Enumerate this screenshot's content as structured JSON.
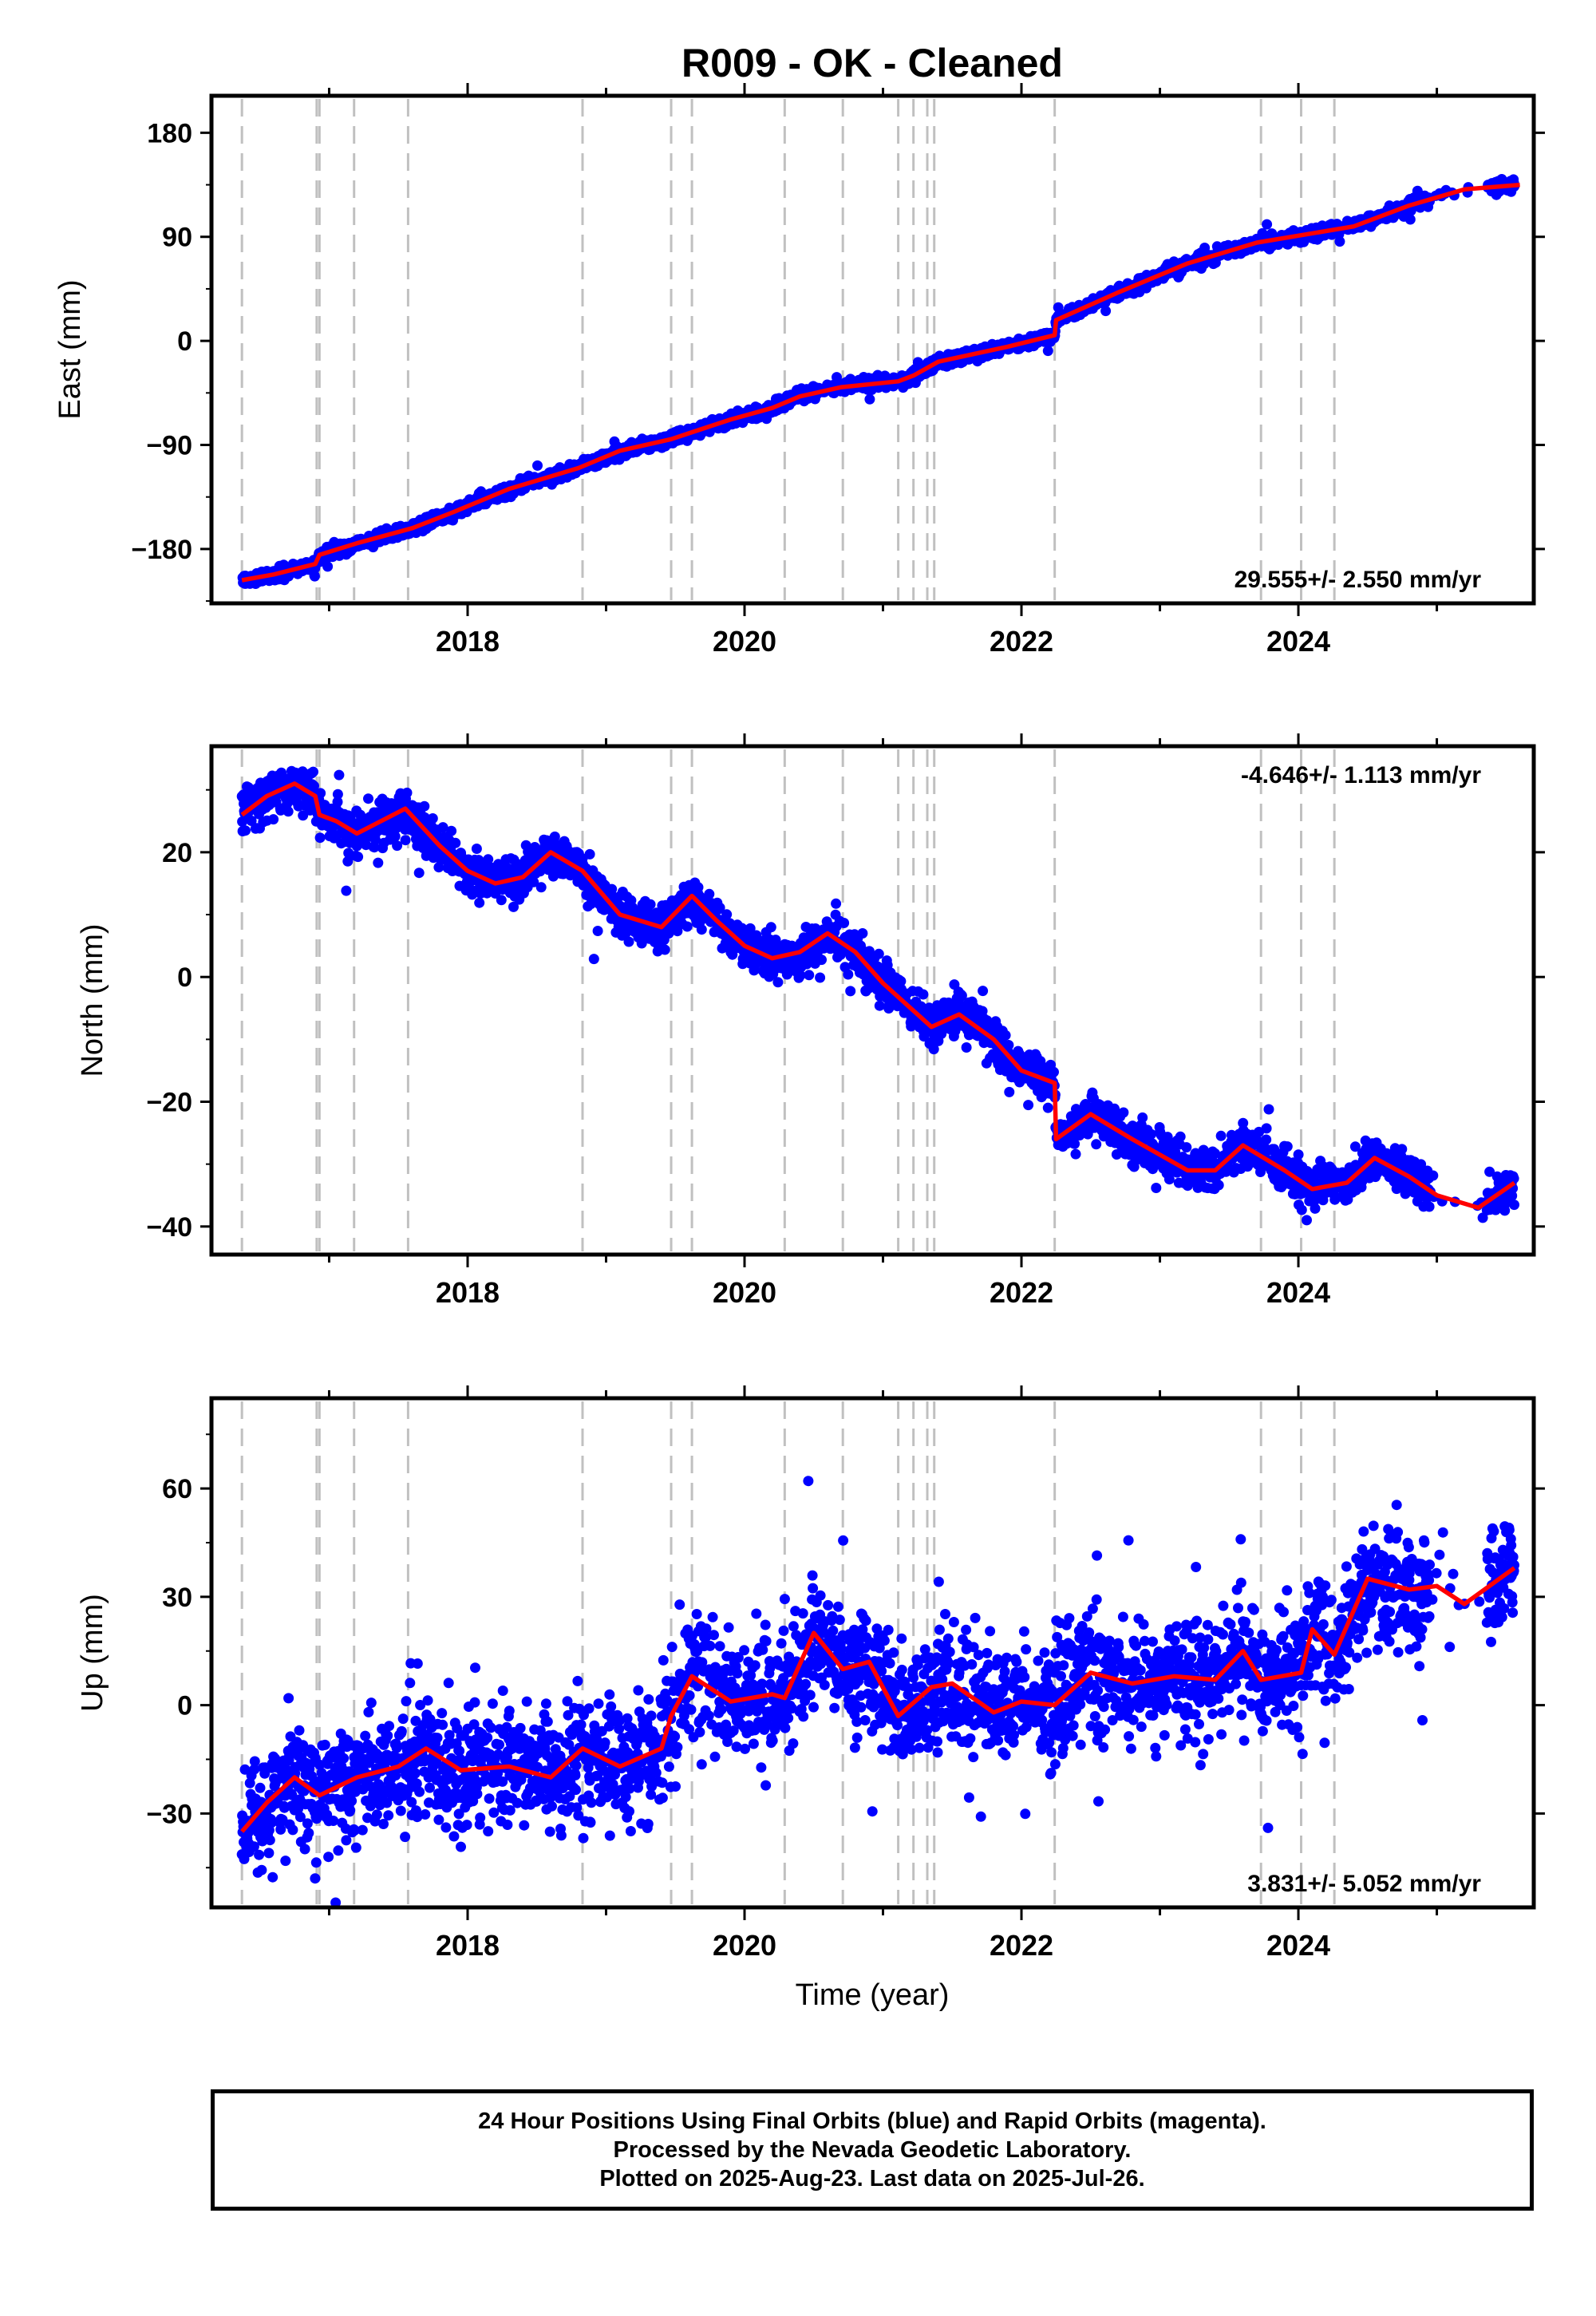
{
  "title": "R009  - OK - Cleaned",
  "xlabel": "Time (year)",
  "x_ticks": [
    2018,
    2020,
    2022,
    2024
  ],
  "x_range": [
    2016.15,
    2025.7
  ],
  "colors": {
    "points": "#0000ff",
    "fit": "#ff0000",
    "breaks": "#c0c0c0",
    "frame": "#000000"
  },
  "break_years": [
    2016.37,
    2016.91,
    2016.93,
    2017.18,
    2017.57,
    2018.83,
    2019.47,
    2019.62,
    2020.29,
    2020.71,
    2021.11,
    2021.22,
    2021.32,
    2021.37,
    2022.24,
    2023.73,
    2024.02,
    2024.26
  ],
  "chart_data": [
    {
      "type": "scatter",
      "ylabel": "East (mm)",
      "ylim": [
        -227,
        212
      ],
      "y_ticks": [
        -180,
        -90,
        0,
        90,
        180
      ],
      "rate": "29.555+/- 2.550 mm/yr",
      "rate_position": "bottom-right",
      "noise": 2.5,
      "fit": [
        [
          2016.37,
          -207
        ],
        [
          2016.6,
          -202
        ],
        [
          2016.9,
          -193
        ],
        [
          2016.93,
          -185
        ],
        [
          2017.2,
          -175
        ],
        [
          2017.6,
          -162
        ],
        [
          2017.9,
          -148
        ],
        [
          2018.3,
          -128
        ],
        [
          2018.8,
          -110
        ],
        [
          2019.1,
          -95
        ],
        [
          2019.47,
          -85
        ],
        [
          2019.62,
          -79
        ],
        [
          2019.9,
          -68
        ],
        [
          2020.2,
          -58
        ],
        [
          2020.4,
          -48
        ],
        [
          2020.7,
          -40
        ],
        [
          2021.11,
          -35
        ],
        [
          2021.22,
          -30
        ],
        [
          2021.4,
          -18
        ],
        [
          2021.9,
          -5
        ],
        [
          2022.24,
          5
        ],
        [
          2022.25,
          18
        ],
        [
          2022.7,
          42
        ],
        [
          2023.2,
          67
        ],
        [
          2023.7,
          85
        ],
        [
          2024.0,
          91
        ],
        [
          2024.4,
          99
        ],
        [
          2024.8,
          117
        ],
        [
          2025.2,
          131
        ],
        [
          2025.6,
          135
        ]
      ],
      "points_range": [
        2016.37,
        2025.56
      ],
      "gap": [
        2024.95,
        2025.36
      ]
    },
    {
      "type": "scatter",
      "ylabel": "North (mm)",
      "ylim": [
        -44.5,
        37
      ],
      "y_ticks": [
        -40,
        -20,
        0,
        20
      ],
      "rate": "-4.646+/- 1.113 mm/yr",
      "rate_position": "top-right",
      "noise": 1.6,
      "fit": [
        [
          2016.37,
          26
        ],
        [
          2016.55,
          29
        ],
        [
          2016.75,
          31
        ],
        [
          2016.9,
          29
        ],
        [
          2016.93,
          26
        ],
        [
          2017.05,
          25
        ],
        [
          2017.2,
          23
        ],
        [
          2017.55,
          27
        ],
        [
          2017.8,
          21
        ],
        [
          2018.0,
          17
        ],
        [
          2018.2,
          15
        ],
        [
          2018.4,
          16
        ],
        [
          2018.6,
          20
        ],
        [
          2018.83,
          17
        ],
        [
          2019.1,
          10
        ],
        [
          2019.4,
          8
        ],
        [
          2019.62,
          13
        ],
        [
          2019.8,
          9
        ],
        [
          2020.0,
          5
        ],
        [
          2020.2,
          3
        ],
        [
          2020.4,
          4
        ],
        [
          2020.6,
          7
        ],
        [
          2020.8,
          4
        ],
        [
          2021.0,
          -1
        ],
        [
          2021.2,
          -5
        ],
        [
          2021.35,
          -8
        ],
        [
          2021.55,
          -6
        ],
        [
          2021.8,
          -10
        ],
        [
          2022.0,
          -15
        ],
        [
          2022.24,
          -17
        ],
        [
          2022.25,
          -26
        ],
        [
          2022.5,
          -22
        ],
        [
          2022.8,
          -26
        ],
        [
          2023.2,
          -31
        ],
        [
          2023.4,
          -31
        ],
        [
          2023.6,
          -27
        ],
        [
          2023.9,
          -31
        ],
        [
          2024.1,
          -34
        ],
        [
          2024.35,
          -33
        ],
        [
          2024.55,
          -29
        ],
        [
          2024.8,
          -32
        ],
        [
          2025.0,
          -35
        ],
        [
          2025.3,
          -37
        ],
        [
          2025.56,
          -33
        ]
      ],
      "points_range": [
        2016.37,
        2025.56
      ],
      "gap": [
        2024.95,
        2025.36
      ]
    },
    {
      "type": "scatter",
      "ylabel": "Up (mm)",
      "ylim": [
        -56,
        85
      ],
      "y_ticks": [
        -30,
        0,
        30,
        60
      ],
      "rate": "3.831+/- 5.052 mm/yr",
      "rate_position": "bottom-right",
      "noise": 8,
      "fit": [
        [
          2016.37,
          -35
        ],
        [
          2016.55,
          -27
        ],
        [
          2016.75,
          -20
        ],
        [
          2016.93,
          -25
        ],
        [
          2017.2,
          -20
        ],
        [
          2017.5,
          -17
        ],
        [
          2017.7,
          -12
        ],
        [
          2017.95,
          -18
        ],
        [
          2018.3,
          -17
        ],
        [
          2018.6,
          -20
        ],
        [
          2018.83,
          -12
        ],
        [
          2019.1,
          -17
        ],
        [
          2019.4,
          -12
        ],
        [
          2019.47,
          -3
        ],
        [
          2019.62,
          8
        ],
        [
          2019.9,
          1
        ],
        [
          2020.2,
          3
        ],
        [
          2020.29,
          2
        ],
        [
          2020.5,
          20
        ],
        [
          2020.71,
          10
        ],
        [
          2020.9,
          12
        ],
        [
          2021.11,
          -3
        ],
        [
          2021.35,
          5
        ],
        [
          2021.5,
          6
        ],
        [
          2021.8,
          -2
        ],
        [
          2022.0,
          1
        ],
        [
          2022.24,
          0
        ],
        [
          2022.5,
          9
        ],
        [
          2022.8,
          6
        ],
        [
          2023.1,
          8
        ],
        [
          2023.4,
          7
        ],
        [
          2023.6,
          15
        ],
        [
          2023.73,
          7
        ],
        [
          2024.02,
          9
        ],
        [
          2024.1,
          21
        ],
        [
          2024.26,
          14
        ],
        [
          2024.5,
          35
        ],
        [
          2024.8,
          32
        ],
        [
          2025.0,
          33
        ],
        [
          2025.2,
          28
        ],
        [
          2025.56,
          38
        ]
      ],
      "points_range": [
        2016.37,
        2025.56
      ],
      "gap": [
        2024.95,
        2025.36
      ]
    }
  ],
  "footer": {
    "line1": "24 Hour Positions Using Final Orbits (blue) and Rapid Orbits (magenta).",
    "line2": "Processed by the Nevada Geodetic Laboratory.",
    "line3": "Plotted on 2025-Aug-23. Last data on 2025-Jul-26."
  }
}
